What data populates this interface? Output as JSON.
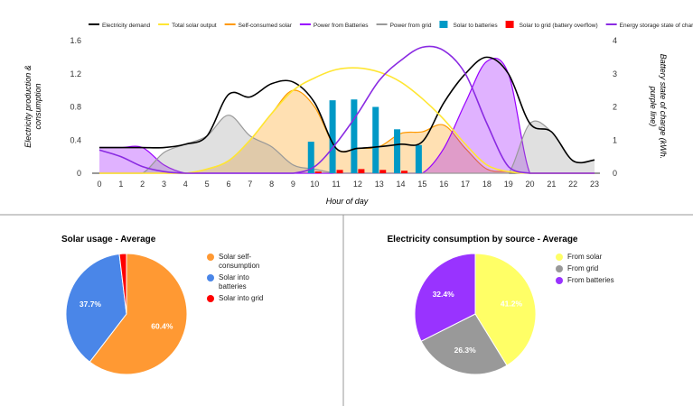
{
  "chart_data": [
    {
      "type": "combo",
      "x": [
        0,
        1,
        2,
        3,
        4,
        5,
        6,
        7,
        8,
        9,
        10,
        11,
        12,
        13,
        14,
        15,
        16,
        17,
        18,
        19,
        20,
        21,
        22,
        23
      ],
      "xlim": [
        0,
        23
      ],
      "x_label": "Hour of day",
      "y_label": [
        "Electricity production &",
        "consumption"
      ],
      "y2_label": [
        "Battery state of charge (kWh.",
        "purple line)"
      ],
      "ylim": [
        0,
        1.6
      ],
      "yticks": [
        0,
        0.4,
        0.8,
        1.2,
        1.6
      ],
      "y2lim": [
        0,
        4
      ],
      "y2ticks": [
        0,
        1,
        2,
        3,
        4
      ],
      "grid": false,
      "series": [
        {
          "name": "Electricity demand",
          "type": "line",
          "color": "#000000",
          "values": [
            0.31,
            0.31,
            0.31,
            0.31,
            0.35,
            0.45,
            0.95,
            0.92,
            1.08,
            1.1,
            0.85,
            0.3,
            0.3,
            0.32,
            0.35,
            0.38,
            0.85,
            1.2,
            1.4,
            1.2,
            0.6,
            0.5,
            0.15,
            0.16
          ]
        },
        {
          "name": "Total solar output",
          "type": "line",
          "color": "#ffe633",
          "values": [
            0,
            0,
            0,
            0,
            0,
            0.05,
            0.15,
            0.4,
            0.72,
            1.0,
            1.15,
            1.25,
            1.27,
            1.22,
            1.1,
            0.9,
            0.65,
            0.35,
            0.1,
            0.02,
            0,
            0,
            0,
            0
          ]
        },
        {
          "name": "Self-consumed solar",
          "type": "area",
          "color": "#ff9900",
          "values": [
            0,
            0,
            0,
            0,
            0,
            0.05,
            0.15,
            0.4,
            0.72,
            1.0,
            0.8,
            0.3,
            0.3,
            0.32,
            0.48,
            0.5,
            0.58,
            0.3,
            0.05,
            0.02,
            0,
            0,
            0,
            0
          ]
        },
        {
          "name": "Power from Batteries",
          "type": "area",
          "color": "#9900ff",
          "values": [
            0.31,
            0.31,
            0.31,
            0.1,
            0,
            0,
            0,
            0,
            0,
            0,
            0,
            0,
            0,
            0,
            0,
            0,
            0.3,
            0.85,
            1.35,
            1.2,
            0,
            0,
            0,
            0
          ]
        },
        {
          "name": "Power from grid",
          "type": "area",
          "color": "#999999",
          "values": [
            0,
            0,
            0,
            0.25,
            0.35,
            0.45,
            0.7,
            0.45,
            0.32,
            0.1,
            0.05,
            0,
            0,
            0,
            0,
            0,
            0,
            0,
            0,
            0,
            0.6,
            0.5,
            0.15,
            0.16
          ]
        },
        {
          "name": "Solar to batteries",
          "type": "bar",
          "color": "#0099c6",
          "values": [
            0,
            0,
            0,
            0,
            0,
            0,
            0,
            0,
            0,
            0,
            0.38,
            0.88,
            0.89,
            0.8,
            0.53,
            0.34,
            0,
            0,
            0,
            0,
            0,
            0,
            0,
            0
          ]
        },
        {
          "name": "Solar to grid (battery overflow)",
          "type": "bar",
          "color": "#ff0000",
          "values": [
            0,
            0,
            0,
            0,
            0,
            0,
            0,
            0,
            0,
            0,
            0.02,
            0.04,
            0.05,
            0.04,
            0.03,
            0,
            0,
            0,
            0,
            0,
            0,
            0,
            0,
            0
          ]
        },
        {
          "name": "Energy storage state of charge",
          "type": "line",
          "axis": "y2",
          "color": "#8a2be2",
          "values": [
            0.7,
            0.5,
            0.2,
            0.05,
            0,
            0,
            0,
            0,
            0,
            0,
            0.2,
            0.9,
            1.8,
            2.8,
            3.4,
            3.8,
            3.7,
            3.0,
            1.5,
            0.2,
            0,
            0,
            0,
            0
          ]
        }
      ]
    },
    {
      "type": "pie",
      "title": "Solar usage - Average",
      "categories": [
        "Solar self-consumption",
        "Solar into batteries",
        "Solar into grid"
      ],
      "values": [
        60.4,
        37.7,
        1.9
      ],
      "value_labels": [
        "60.4%",
        "37.7%",
        null
      ],
      "colors": [
        "#ff9933",
        "#4a86e8",
        "#ff0000"
      ]
    },
    {
      "type": "pie",
      "title": "Electricity consumption by source - Average",
      "categories": [
        "From solar",
        "From grid",
        "From batteries"
      ],
      "values": [
        41.2,
        26.3,
        32.4
      ],
      "value_labels": [
        "41.2%",
        "26.3%",
        "32.4%"
      ],
      "colors": [
        "#ffff66",
        "#999999",
        "#9933ff"
      ]
    }
  ]
}
